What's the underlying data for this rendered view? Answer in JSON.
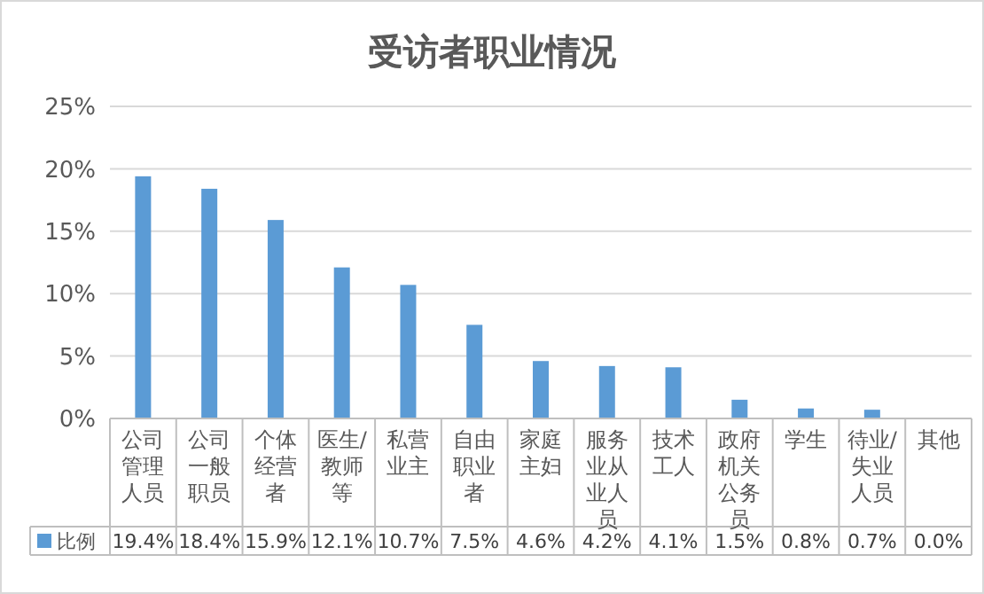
{
  "chart_data": {
    "type": "bar",
    "title": "受访者职业情况",
    "categories": [
      "公司管理人员",
      "公司一般职员",
      "个体经营者",
      "医生/教师等",
      "私营业主",
      "自由职业者",
      "家庭主妇",
      "服务业从业人员",
      "技术工人",
      "政府机关公务员",
      "学生",
      "待业/失业人员",
      "其他"
    ],
    "series": [
      {
        "name": "比例",
        "color": "#5b9bd5",
        "values": [
          19.4,
          18.4,
          15.9,
          12.1,
          10.7,
          7.5,
          4.6,
          4.2,
          4.1,
          1.5,
          0.8,
          0.7,
          0.0
        ],
        "value_labels": [
          "19.4%",
          "18.4%",
          "15.9%",
          "12.1%",
          "10.7%",
          "7.5%",
          "4.6%",
          "4.2%",
          "4.1%",
          "1.5%",
          "0.8%",
          "0.7%",
          "0.0%"
        ]
      }
    ],
    "ylim": [
      0,
      25
    ],
    "yticks": [
      {
        "value": 0,
        "label": "0%"
      },
      {
        "value": 5,
        "label": "5%"
      },
      {
        "value": 10,
        "label": "10%"
      },
      {
        "value": 15,
        "label": "15%"
      },
      {
        "value": 20,
        "label": "20%"
      },
      {
        "value": 25,
        "label": "25%"
      }
    ],
    "grid": "y",
    "legend": "bottom"
  }
}
